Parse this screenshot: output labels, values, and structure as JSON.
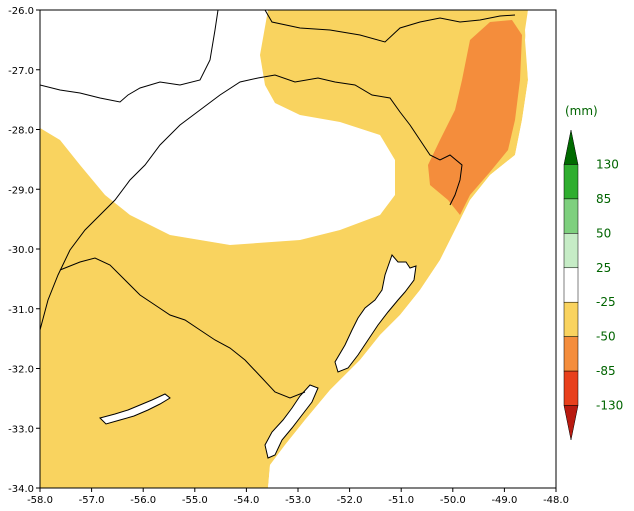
{
  "map": {
    "x_ticks": [
      "-58.0",
      "-57.0",
      "-56.0",
      "-55.0",
      "-54.0",
      "-53.0",
      "-52.0",
      "-51.0",
      "-50.0",
      "-49.0",
      "-48.0"
    ],
    "y_ticks": [
      "-26.0",
      "-27.0",
      "-28.0",
      "-29.0",
      "-30.0",
      "-31.0",
      "-32.0",
      "-33.0",
      "-34.0"
    ],
    "colors": {
      "ocean": "#ffffff",
      "land_neutral": "#ffffff",
      "anomaly_minus25_minus50": "#f9d35f",
      "anomaly_minus50_minus85": "#f48d3c",
      "lagoon": "#ffffff",
      "border_line": "#000000"
    }
  },
  "legend": {
    "unit": "(mm)",
    "labels": [
      "130",
      "85",
      "50",
      "25",
      "-25",
      "-50",
      "-85",
      "-130"
    ],
    "colors": [
      "#006a00",
      "#2fae2f",
      "#7ed07e",
      "#c6ecc6",
      "#ffffff",
      "#f9d35f",
      "#f48d3c",
      "#e8401c",
      "#b81a10"
    ]
  }
}
